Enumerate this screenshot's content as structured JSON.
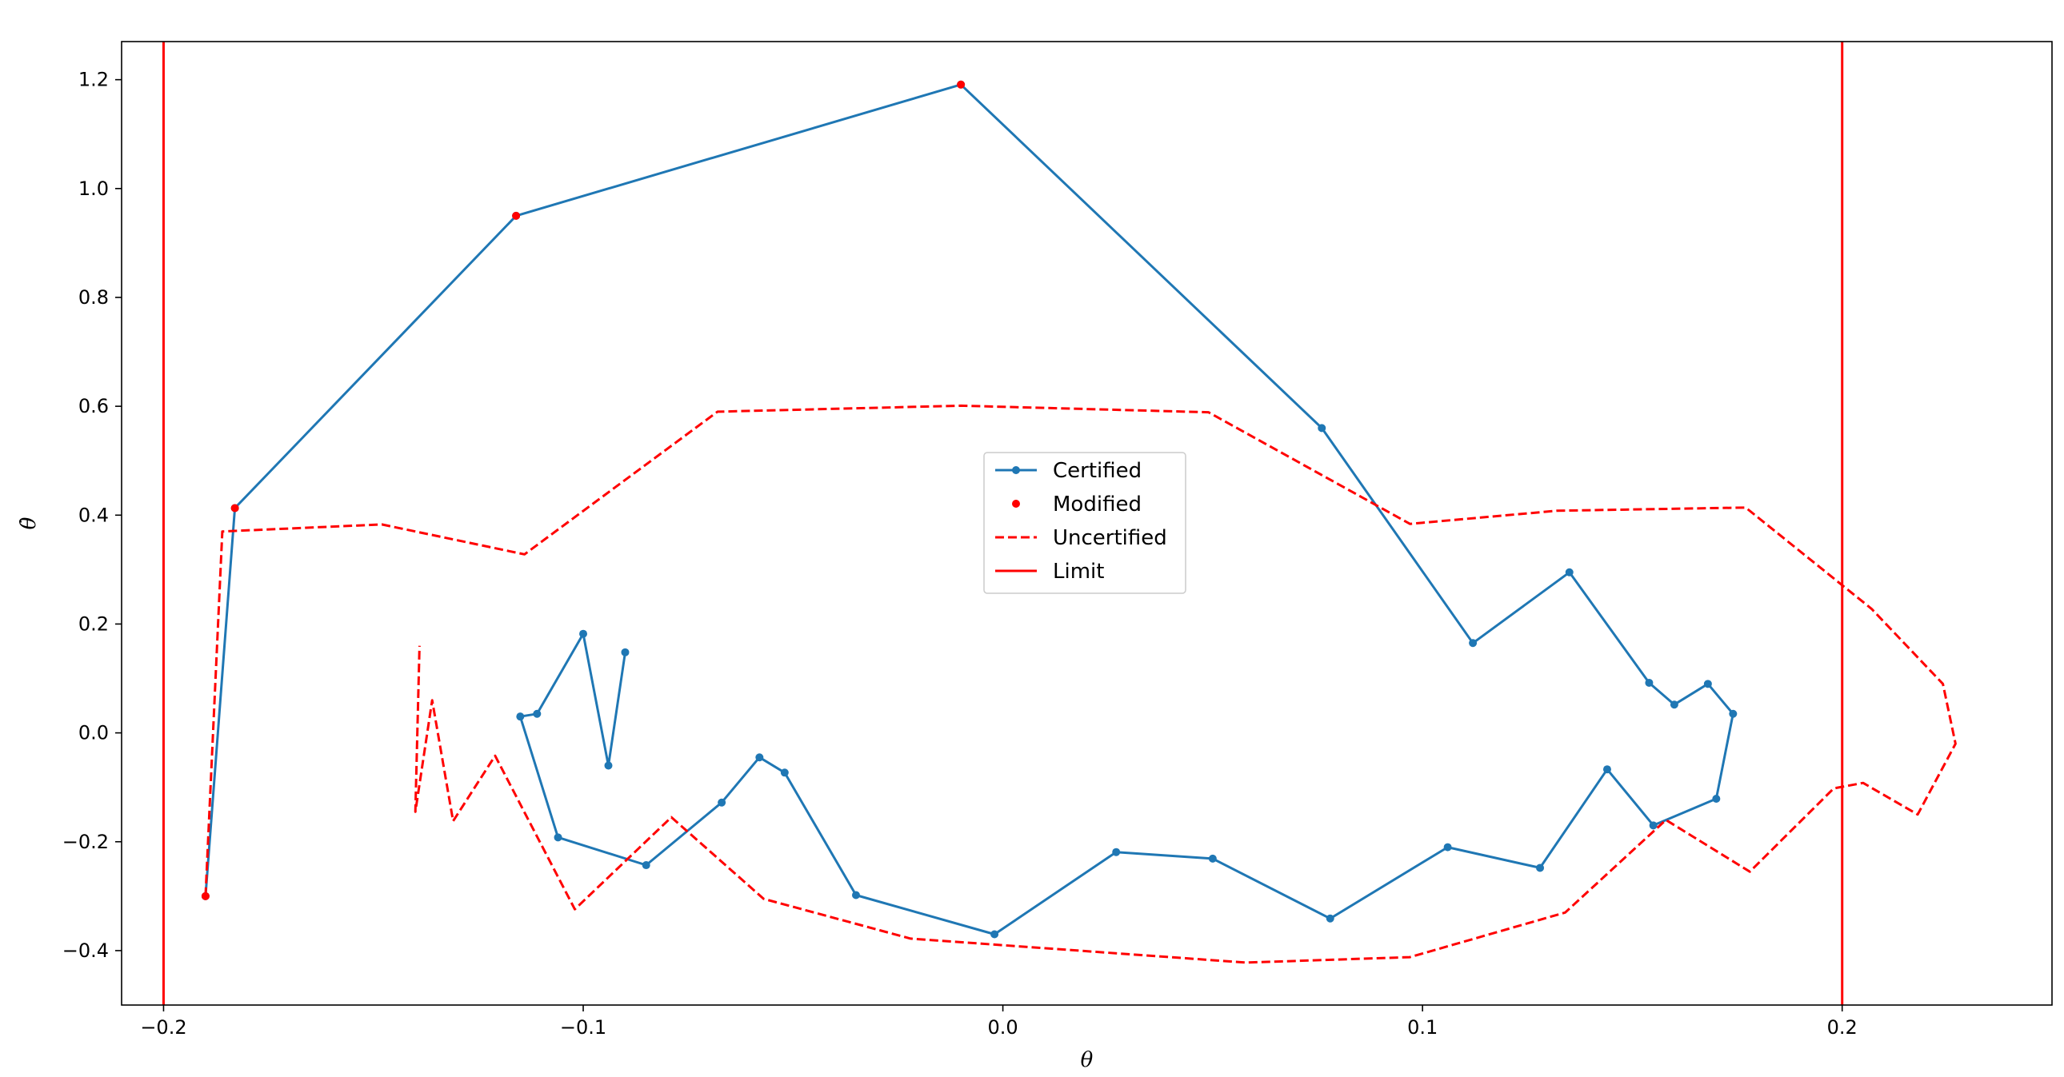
{
  "chart_data": {
    "type": "line",
    "xlabel": "θ",
    "ylabel": "θ̇",
    "xlim": [
      -0.21,
      0.25
    ],
    "ylim": [
      -0.5,
      1.27
    ],
    "xticks": [
      -0.2,
      -0.1,
      0.0,
      0.1,
      0.2
    ],
    "xtick_labels": [
      "−0.2",
      "−0.1",
      "0.0",
      "0.1",
      "0.2"
    ],
    "yticks": [
      -0.4,
      -0.2,
      0.0,
      0.2,
      0.4,
      0.6,
      0.8,
      1.0,
      1.2
    ],
    "ytick_labels": [
      "−0.4",
      "−0.2",
      "0.0",
      "0.2",
      "0.4",
      "0.6",
      "0.8",
      "1.0",
      "1.2"
    ],
    "grid": false,
    "legend": {
      "placement": "center",
      "entries": [
        "Certified",
        "Modified",
        "Uncertified",
        "Limit"
      ]
    },
    "series": [
      {
        "name": "Certified",
        "style": "solid-marker",
        "color": "#1f77b4",
        "points": [
          [
            -0.19,
            -0.3
          ],
          [
            -0.183,
            0.413
          ],
          [
            -0.116,
            0.95
          ],
          [
            -0.01,
            1.191
          ],
          [
            0.076,
            0.56
          ],
          [
            0.112,
            0.165
          ],
          [
            0.135,
            0.295
          ],
          [
            0.154,
            0.092
          ],
          [
            0.16,
            0.052
          ],
          [
            0.168,
            0.09
          ],
          [
            0.174,
            0.035
          ],
          [
            0.17,
            -0.121
          ],
          [
            0.155,
            -0.17
          ],
          [
            0.144,
            -0.067
          ],
          [
            0.128,
            -0.248
          ],
          [
            0.106,
            -0.21
          ],
          [
            0.078,
            -0.341
          ],
          [
            0.05,
            -0.231
          ],
          [
            0.027,
            -0.219
          ],
          [
            -0.002,
            -0.37
          ],
          [
            -0.035,
            -0.298
          ],
          [
            -0.052,
            -0.073
          ],
          [
            -0.058,
            -0.045
          ],
          [
            -0.067,
            -0.128
          ],
          [
            -0.085,
            -0.243
          ],
          [
            -0.106,
            -0.192
          ],
          [
            -0.115,
            0.03
          ],
          [
            -0.111,
            0.035
          ],
          [
            -0.1,
            0.182
          ],
          [
            -0.094,
            -0.06
          ],
          [
            -0.09,
            0.148
          ]
        ]
      },
      {
        "name": "Modified",
        "style": "marker",
        "color": "#ff0000",
        "points": [
          [
            -0.183,
            0.413
          ],
          [
            -0.116,
            0.95
          ],
          [
            -0.01,
            1.191
          ],
          [
            -0.19,
            -0.3
          ]
        ]
      },
      {
        "name": "Uncertified",
        "style": "dashed",
        "color": "#ff0000",
        "points": [
          [
            -0.19,
            -0.3
          ],
          [
            -0.186,
            0.37
          ],
          [
            -0.148,
            0.383
          ],
          [
            -0.114,
            0.328
          ],
          [
            -0.068,
            0.59
          ],
          [
            -0.01,
            0.601
          ],
          [
            0.049,
            0.589
          ],
          [
            0.097,
            0.384
          ],
          [
            0.132,
            0.408
          ],
          [
            0.177,
            0.414
          ],
          [
            0.207,
            0.228
          ],
          [
            0.224,
            0.09
          ],
          [
            0.227,
            -0.02
          ],
          [
            0.218,
            -0.15
          ],
          [
            0.205,
            -0.092
          ],
          [
            0.198,
            -0.102
          ],
          [
            0.178,
            -0.255
          ],
          [
            0.158,
            -0.16
          ],
          [
            0.134,
            -0.33
          ],
          [
            0.097,
            -0.412
          ],
          [
            0.058,
            -0.422
          ],
          [
            -0.022,
            -0.378
          ],
          [
            -0.057,
            -0.305
          ],
          [
            -0.079,
            -0.155
          ],
          [
            -0.102,
            -0.324
          ],
          [
            -0.121,
            -0.042
          ],
          [
            -0.131,
            -0.162
          ],
          [
            -0.136,
            0.06
          ],
          [
            -0.14,
            -0.145
          ],
          [
            -0.139,
            0.16
          ]
        ]
      },
      {
        "name": "Limit",
        "style": "vline",
        "color": "#ff0000",
        "x_values": [
          -0.2,
          0.2
        ]
      }
    ]
  }
}
